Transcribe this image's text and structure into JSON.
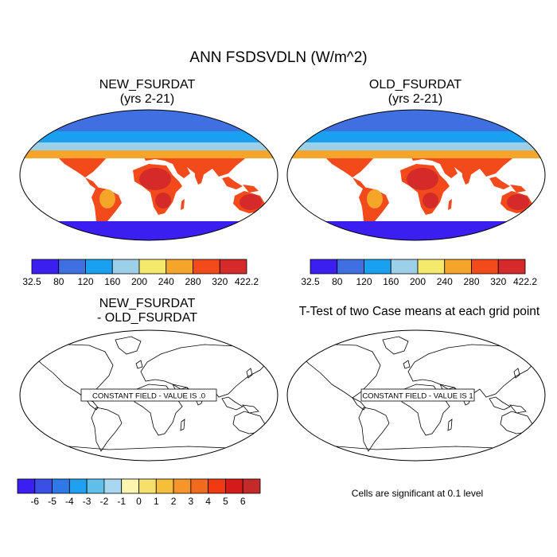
{
  "title": "ANN FSDSVDLN (W/m^2)",
  "panels": {
    "new": {
      "line1": "NEW_FSURDAT",
      "line2": "(yrs 2-21)"
    },
    "old": {
      "line1": "OLD_FSURDAT",
      "line2": "(yrs 2-21)"
    },
    "diff": {
      "line1": "NEW_FSURDAT",
      "line2": "- OLD_FSURDAT",
      "field_label": "CONSTANT FIELD - VALUE IS .0"
    },
    "ttest": {
      "title": "T-Test of two Case means at each grid point",
      "field_label": "CONSTANT FIELD - VALUE IS 1",
      "note": "Cells are significant at 0.1 level"
    }
  },
  "colorbar_main": {
    "colors": [
      "#3b1ff0",
      "#3f6fe0",
      "#19a0f0",
      "#9ccfe8",
      "#f5e96b",
      "#f5a52a",
      "#f24a1a",
      "#d42a2a"
    ],
    "labels": [
      "32.5",
      "80",
      "120",
      "160",
      "200",
      "240",
      "280",
      "320",
      "422.2"
    ]
  },
  "colorbar_diff": {
    "colors": [
      "#3b1ff0",
      "#3a4fe6",
      "#2f78e8",
      "#1fa0f0",
      "#5fbfe8",
      "#a8d8f0",
      "#fbf5b0",
      "#f5e06b",
      "#f5bf3a",
      "#f5952a",
      "#f26a1e",
      "#ef3a12",
      "#d41a1a",
      "#c42a2a"
    ],
    "labels": [
      "-6",
      "-5",
      "-4",
      "-3",
      "-2",
      "-1",
      "0",
      "1",
      "2",
      "3",
      "4",
      "5",
      "6"
    ]
  }
}
